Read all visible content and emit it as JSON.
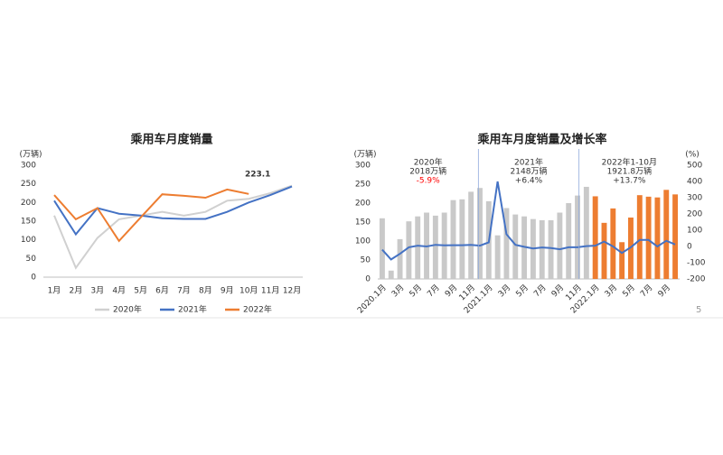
{
  "page_number": "5",
  "chart_data": [
    {
      "type": "line",
      "title": "乘用车月度销量",
      "y_label": "(万辆)",
      "categories": [
        "1月",
        "2月",
        "3月",
        "4月",
        "5月",
        "6月",
        "7月",
        "8月",
        "9月",
        "10月",
        "11月",
        "12月"
      ],
      "ylim": [
        0,
        300
      ],
      "yticks": [
        0,
        50,
        100,
        150,
        200,
        250,
        300
      ],
      "legend": "bottom",
      "series": [
        {
          "name": "2020年",
          "color": "#d0d0d0",
          "values": [
            165,
            25,
            105,
            155,
            165,
            175,
            165,
            175,
            205,
            210,
            225,
            245
          ]
        },
        {
          "name": "2021年",
          "color": "#4472c4",
          "values": [
            205,
            115,
            185,
            170,
            165,
            158,
            156,
            156,
            175,
            200,
            220,
            243
          ]
        },
        {
          "name": "2022年",
          "color": "#ed7d31",
          "values": [
            220,
            155,
            185,
            97,
            160,
            222,
            218,
            213,
            235,
            223.1,
            null,
            null
          ]
        }
      ]
    },
    {
      "type": "bar",
      "title": "乘用车月度销量及增长率",
      "y_label": "(万辆)",
      "y2_label": "(%)",
      "categories": [
        "2020.1月",
        null,
        "3月",
        null,
        "5月",
        null,
        "7月",
        null,
        "9月",
        null,
        "11月",
        null,
        "2021.1月",
        null,
        "3月",
        null,
        "5月",
        null,
        "7月",
        null,
        "9月",
        null,
        "11月",
        null,
        "2022.1月",
        null,
        "3月",
        null,
        "5月",
        null,
        "7月",
        null,
        "9月",
        null
      ],
      "ylim": [
        0,
        300
      ],
      "yticks": [
        0,
        50,
        100,
        150,
        200,
        250,
        300
      ],
      "y2lim": [
        -200,
        500
      ],
      "y2ticks": [
        -200,
        -100,
        0,
        100,
        200,
        300,
        400,
        500
      ],
      "negative_color": "#ff0000",
      "annotations": [
        [
          "2020年",
          "2018万辆",
          "-5.9%"
        ],
        [
          "2021年",
          "2148万辆",
          "+6.4%"
        ],
        [
          "2022年1-10月",
          "1921.8万辆",
          "+13.7%"
        ]
      ],
      "series": [
        {
          "type": "bar",
          "color": "#c9c9c9",
          "values": [
            160,
            22,
            105,
            152,
            165,
            175,
            167,
            175,
            208,
            210,
            230,
            240,
            205,
            115,
            187,
            170,
            165,
            158,
            155,
            155,
            175,
            200,
            220,
            243,
            null,
            null,
            null,
            null,
            null,
            null,
            null,
            null,
            null,
            null
          ]
        },
        {
          "type": "bar",
          "color": "#ed7d31",
          "values": [
            null,
            null,
            null,
            null,
            null,
            null,
            null,
            null,
            null,
            null,
            null,
            null,
            null,
            null,
            null,
            null,
            null,
            null,
            null,
            null,
            null,
            null,
            null,
            null,
            218,
            148,
            186,
            97,
            162,
            221,
            217,
            215,
            235,
            223
          ]
        },
        {
          "type": "line",
          "axis": "y2",
          "color": "#4472c4",
          "values": [
            -20,
            -80,
            -45,
            -5,
            5,
            0,
            10,
            7,
            8,
            8,
            10,
            5,
            25,
            400,
            75,
            10,
            -2,
            -12,
            -6,
            -10,
            -17,
            -5,
            -5,
            2,
            5,
            30,
            0,
            -40,
            -5,
            40,
            40,
            0,
            35,
            12
          ]
        }
      ]
    }
  ]
}
